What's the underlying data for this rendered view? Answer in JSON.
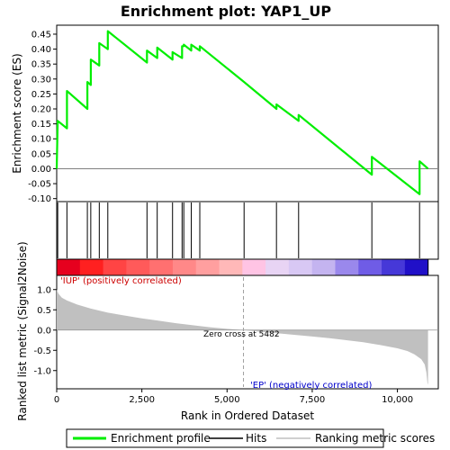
{
  "chart_data": {
    "type": "line",
    "title": "Enrichment plot: YAP1_UP",
    "xlabel": "Rank in Ordered Dataset",
    "ylabel_top": "Enrichment score (ES)",
    "ylabel_bottom": "Ranked list metric (Signal2Noise)",
    "x_ticks": [
      0,
      2500,
      5000,
      7500,
      10000
    ],
    "x_tick_labels": [
      "0",
      "2,500",
      "5,000",
      "7,500",
      "10,000"
    ],
    "xlim": [
      0,
      11200
    ],
    "es_ylim": [
      -0.11,
      0.48
    ],
    "es_yticks": [
      -0.1,
      -0.05,
      0.0,
      0.05,
      0.1,
      0.15,
      0.2,
      0.25,
      0.3,
      0.35,
      0.4,
      0.45
    ],
    "es_ytick_labels": [
      "-0.10",
      "-0.05",
      "0.00",
      "0.05",
      "0.10",
      "0.15",
      "0.20",
      "0.25",
      "0.30",
      "0.35",
      "0.40",
      "0.45"
    ],
    "metric_ylim": [
      -1.45,
      1.35
    ],
    "metric_yticks": [
      -1.0,
      -0.5,
      0.0,
      0.5,
      1.0
    ],
    "metric_ytick_labels": [
      "-1.0",
      "-0.5",
      "0.0",
      "0.5",
      "1.0"
    ],
    "dataset_size": 10900,
    "hits": [
      30,
      300,
      900,
      1000,
      1250,
      1500,
      2650,
      2950,
      3400,
      3680,
      3730,
      3950,
      4200,
      5500,
      6450,
      7100,
      9250,
      10650
    ],
    "es_points": [
      [
        0,
        0.0
      ],
      [
        30,
        0.16
      ],
      [
        300,
        0.135
      ],
      [
        300,
        0.26
      ],
      [
        900,
        0.2
      ],
      [
        900,
        0.29
      ],
      [
        1000,
        0.28
      ],
      [
        1000,
        0.365
      ],
      [
        1250,
        0.345
      ],
      [
        1250,
        0.42
      ],
      [
        1500,
        0.4
      ],
      [
        1500,
        0.46
      ],
      [
        2650,
        0.355
      ],
      [
        2650,
        0.395
      ],
      [
        2950,
        0.37
      ],
      [
        2950,
        0.405
      ],
      [
        3400,
        0.365
      ],
      [
        3400,
        0.39
      ],
      [
        3680,
        0.37
      ],
      [
        3680,
        0.41
      ],
      [
        3730,
        0.41
      ],
      [
        3730,
        0.415
      ],
      [
        3950,
        0.395
      ],
      [
        3950,
        0.415
      ],
      [
        4200,
        0.395
      ],
      [
        4200,
        0.41
      ],
      [
        5500,
        0.29
      ],
      [
        6450,
        0.2
      ],
      [
        6450,
        0.215
      ],
      [
        7100,
        0.16
      ],
      [
        7100,
        0.18
      ],
      [
        9250,
        -0.02
      ],
      [
        9250,
        0.04
      ],
      [
        10650,
        -0.085
      ],
      [
        10650,
        0.025
      ],
      [
        10900,
        0.0
      ]
    ],
    "metric_curve": [
      [
        0,
        1.0
      ],
      [
        50,
        0.9
      ],
      [
        150,
        0.8
      ],
      [
        300,
        0.73
      ],
      [
        600,
        0.63
      ],
      [
        1000,
        0.53
      ],
      [
        1500,
        0.43
      ],
      [
        2000,
        0.36
      ],
      [
        2500,
        0.29
      ],
      [
        3000,
        0.23
      ],
      [
        3500,
        0.17
      ],
      [
        4000,
        0.12
      ],
      [
        4500,
        0.07
      ],
      [
        5000,
        0.03
      ],
      [
        5482,
        0.0
      ],
      [
        6000,
        -0.04
      ],
      [
        6500,
        -0.08
      ],
      [
        7000,
        -0.12
      ],
      [
        7500,
        -0.16
      ],
      [
        8000,
        -0.2
      ],
      [
        8500,
        -0.25
      ],
      [
        9000,
        -0.3
      ],
      [
        9500,
        -0.37
      ],
      [
        10000,
        -0.45
      ],
      [
        10300,
        -0.52
      ],
      [
        10500,
        -0.6
      ],
      [
        10700,
        -0.72
      ],
      [
        10800,
        -0.85
      ],
      [
        10850,
        -1.05
      ],
      [
        10880,
        -1.3
      ],
      [
        10900,
        -1.35
      ]
    ],
    "zero_cross_rank": 5482,
    "annotations": {
      "zero_cross": "Zero cross at 5482",
      "pos_label": "'IUP' (positively correlated)",
      "neg_label": "'EP' (negatively correlated)"
    },
    "heatbar_colors": [
      "#e6001e",
      "#ff2020",
      "#ff4444",
      "#ff5a5a",
      "#ff7070",
      "#ff8888",
      "#ff9f9f",
      "#ffb8b8",
      "#ffc4e4",
      "#e8d4f4",
      "#d8c8f4",
      "#c4b4f0",
      "#9a88ec",
      "#6f5ce6",
      "#4638d8",
      "#2010c8"
    ],
    "legend": [
      "Enrichment profile",
      "Hits",
      "Ranking metric scores"
    ],
    "colors": {
      "es_line": "#00ee00",
      "hit": "#000000",
      "metric_fill": "#c0c0c0",
      "pos_text": "#cc0000",
      "neg_text": "#0000cc",
      "zero_line": "#a0a0a0"
    }
  }
}
